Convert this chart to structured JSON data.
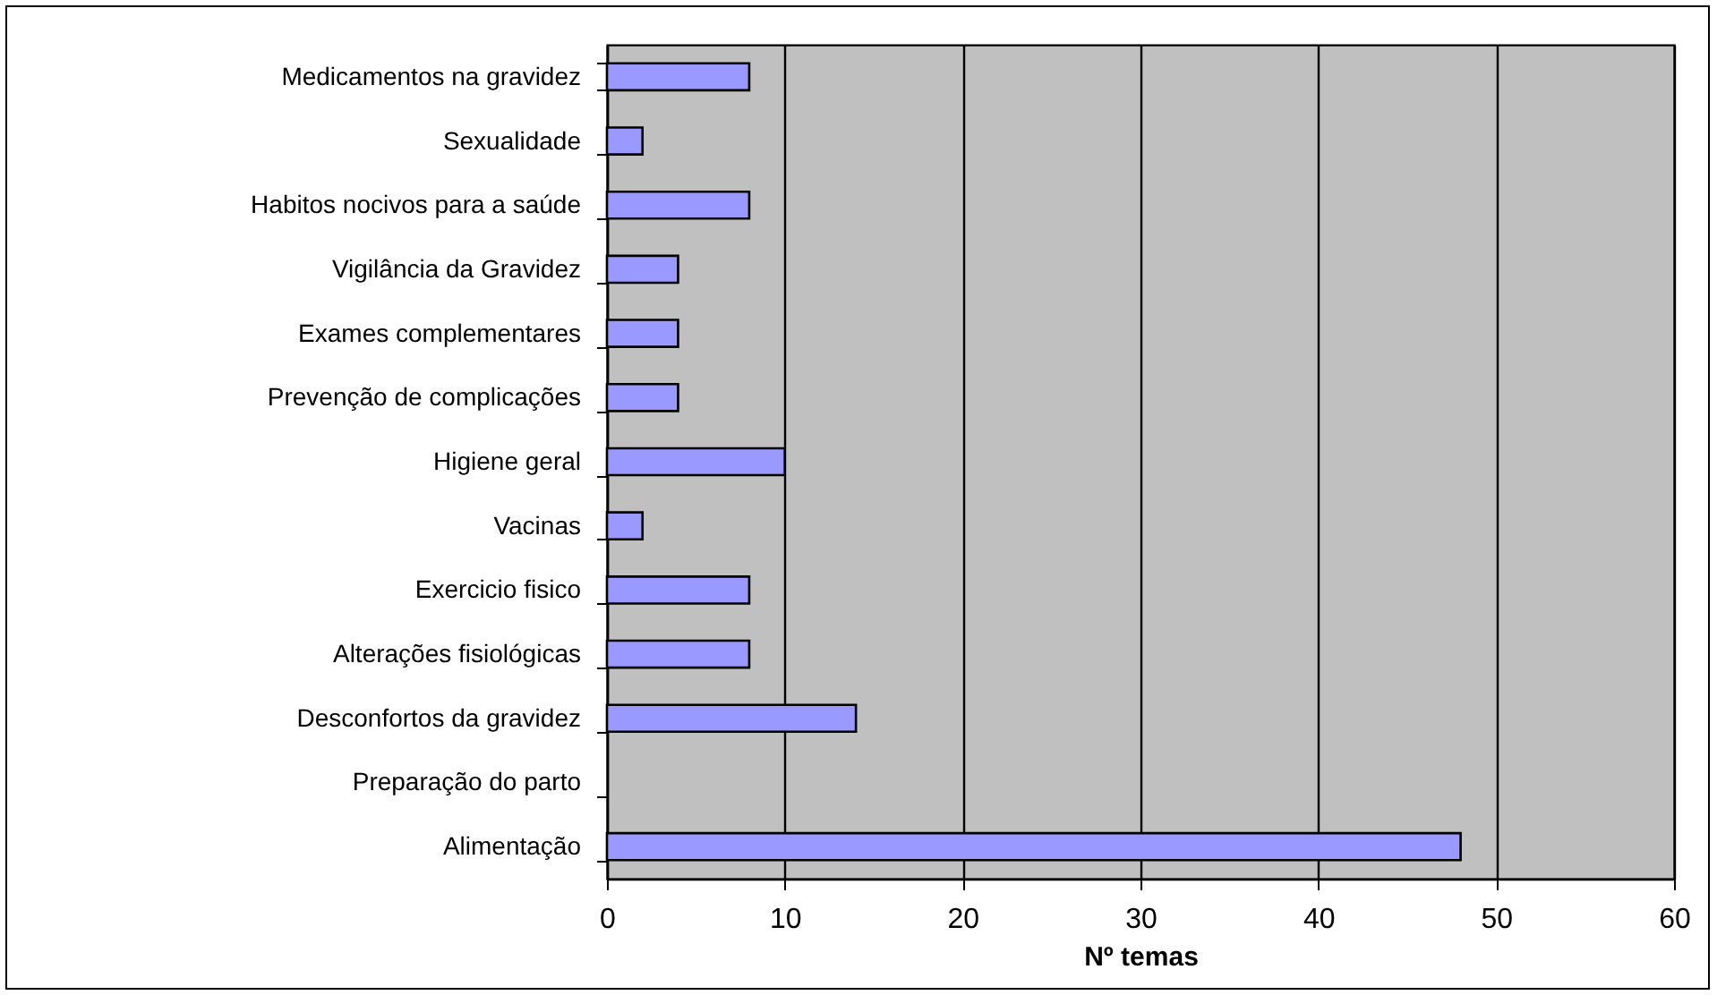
{
  "chart_data": {
    "type": "bar",
    "orientation": "horizontal",
    "xlabel": "Nº temas",
    "categories": [
      "Medicamentos na gravidez",
      "Sexualidade",
      "Habitos nocivos para a saúde",
      "Vigilância da Gravidez",
      "Exames complementares",
      "Prevenção de complicações",
      "Higiene geral",
      "Vacinas",
      "Exercicio fisico",
      "Alterações fisiológicas",
      "Desconfortos da gravidez",
      "Preparação do parto",
      "Alimentação"
    ],
    "values": [
      8,
      2,
      8,
      4,
      4,
      4,
      10,
      2,
      8,
      8,
      14,
      0,
      48
    ],
    "color": "#9999ff",
    "xlim": [
      0,
      60
    ],
    "xticks": [
      0,
      10,
      20,
      30,
      40,
      50,
      60
    ],
    "grid": "x"
  }
}
